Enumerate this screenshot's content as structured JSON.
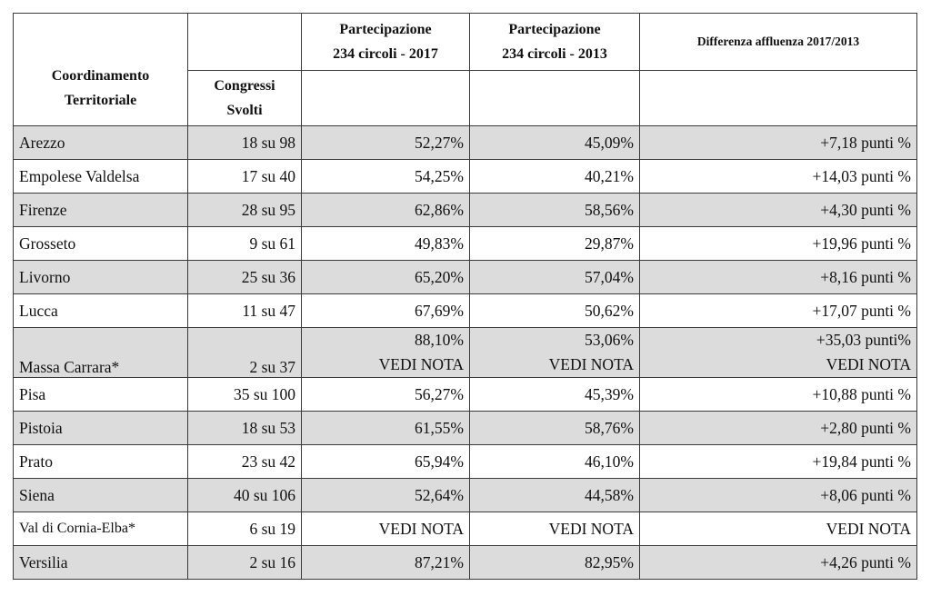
{
  "headers": {
    "coordinamento": [
      "Coordinamento",
      "Territoriale"
    ],
    "congressi": [
      "Congressi",
      "Svolti"
    ],
    "part2017": [
      "Partecipazione",
      "234 circoli - 2017"
    ],
    "part2013": [
      "Partecipazione",
      "234 circoli - 2013"
    ],
    "differenza": "Differenza affluenza 2017/2013"
  },
  "rows": [
    {
      "name": "Arezzo",
      "congressi": "18 su 98",
      "p2017": "52,27%",
      "p2013": "45,09%",
      "diff": "+7,18 punti %"
    },
    {
      "name": "Empolese Valdelsa",
      "congressi": "17 su 40",
      "p2017": "54,25%",
      "p2013": "40,21%",
      "diff": "+14,03 punti %"
    },
    {
      "name": "Firenze",
      "congressi": "28 su 95",
      "p2017": "62,86%",
      "p2013": "58,56%",
      "diff": "+4,30 punti %"
    },
    {
      "name": "Grosseto",
      "congressi": "9 su 61",
      "p2017": "49,83%",
      "p2013": "29,87%",
      "diff": "+19,96 punti %"
    },
    {
      "name": "Livorno",
      "congressi": "25 su 36",
      "p2017": "65,20%",
      "p2013": "57,04%",
      "diff": "+8,16 punti %"
    },
    {
      "name": "Lucca",
      "congressi": "11 su 47",
      "p2017": "67,69%",
      "p2013": "50,62%",
      "diff": "+17,07 punti %"
    },
    {
      "name": "Massa Carrara*",
      "congressi": "2 su 37",
      "p2017": "88,10%",
      "p2017_note": "VEDI NOTA",
      "p2013": "53,06%",
      "p2013_note": "VEDI NOTA",
      "diff": "+35,03 punti%",
      "diff_note": "VEDI NOTA"
    },
    {
      "name": "Pisa",
      "congressi": "35 su 100",
      "p2017": "56,27%",
      "p2013": "45,39%",
      "diff": "+10,88 punti %"
    },
    {
      "name": "Pistoia",
      "congressi": "18 su 53",
      "p2017": "61,55%",
      "p2013": "58,76%",
      "diff": "+2,80 punti %"
    },
    {
      "name": "Prato",
      "congressi": "23 su 42",
      "p2017": "65,94%",
      "p2013": "46,10%",
      "diff": "+19,84 punti %"
    },
    {
      "name": "Siena",
      "congressi": "40 su 106",
      "p2017": "52,64%",
      "p2013": "44,58%",
      "diff": "+8,06 punti %"
    },
    {
      "name": "Val di Cornia-Elba*",
      "congressi": "6 su 19",
      "p2017": "VEDI NOTA",
      "p2013": "VEDI NOTA",
      "diff": "VEDI NOTA"
    },
    {
      "name": "Versilia",
      "congressi": "2 su 16",
      "p2017": "87,21%",
      "p2013": "82,95%",
      "diff": "+4,26 punti %"
    }
  ]
}
